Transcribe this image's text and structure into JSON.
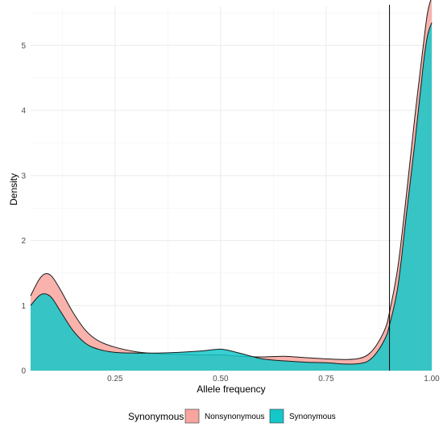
{
  "chart_data": {
    "type": "area",
    "xlabel": "Allele frequency",
    "ylabel": "Density",
    "xlim": [
      0.05,
      1.0
    ],
    "ylim": [
      0,
      5.6
    ],
    "x_ticks": [
      0.25,
      0.5,
      0.75,
      1.0
    ],
    "x_tick_labels": [
      "0.25",
      "0.50",
      "0.75",
      "1.00"
    ],
    "y_ticks": [
      0,
      1,
      2,
      3,
      4,
      5
    ],
    "y_tick_labels": [
      "0",
      "1",
      "2",
      "3",
      "4",
      "5"
    ],
    "grid": true,
    "legend_position": "bottom",
    "legend_title": "Synonymous",
    "vline_x": 0.9,
    "series": [
      {
        "name": "Nonsynonymous",
        "color": "#F8A59E",
        "x": [
          0.05,
          0.07,
          0.085,
          0.1,
          0.12,
          0.15,
          0.18,
          0.21,
          0.25,
          0.3,
          0.35,
          0.4,
          0.45,
          0.5,
          0.55,
          0.6,
          0.65,
          0.7,
          0.75,
          0.8,
          0.83,
          0.85,
          0.87,
          0.89,
          0.9,
          0.92,
          0.94,
          0.96,
          0.98,
          0.99,
          1.0
        ],
        "y": [
          1.15,
          1.4,
          1.49,
          1.45,
          1.25,
          0.9,
          0.62,
          0.46,
          0.36,
          0.29,
          0.26,
          0.25,
          0.24,
          0.24,
          0.22,
          0.21,
          0.22,
          0.2,
          0.18,
          0.17,
          0.19,
          0.25,
          0.4,
          0.65,
          0.9,
          1.6,
          2.7,
          3.9,
          5.0,
          5.5,
          5.75
        ]
      },
      {
        "name": "Synonymous",
        "color": "#14C7C9",
        "x": [
          0.05,
          0.07,
          0.085,
          0.1,
          0.12,
          0.15,
          0.18,
          0.21,
          0.25,
          0.3,
          0.35,
          0.4,
          0.45,
          0.48,
          0.5,
          0.52,
          0.55,
          0.6,
          0.65,
          0.7,
          0.75,
          0.8,
          0.83,
          0.85,
          0.87,
          0.89,
          0.9,
          0.92,
          0.94,
          0.96,
          0.98,
          0.99,
          1.0
        ],
        "y": [
          1.0,
          1.15,
          1.18,
          1.12,
          0.92,
          0.62,
          0.42,
          0.33,
          0.28,
          0.27,
          0.27,
          0.28,
          0.3,
          0.32,
          0.33,
          0.31,
          0.26,
          0.18,
          0.15,
          0.13,
          0.12,
          0.1,
          0.11,
          0.15,
          0.28,
          0.5,
          0.7,
          1.3,
          2.4,
          3.5,
          4.7,
          5.15,
          5.35
        ]
      }
    ]
  }
}
